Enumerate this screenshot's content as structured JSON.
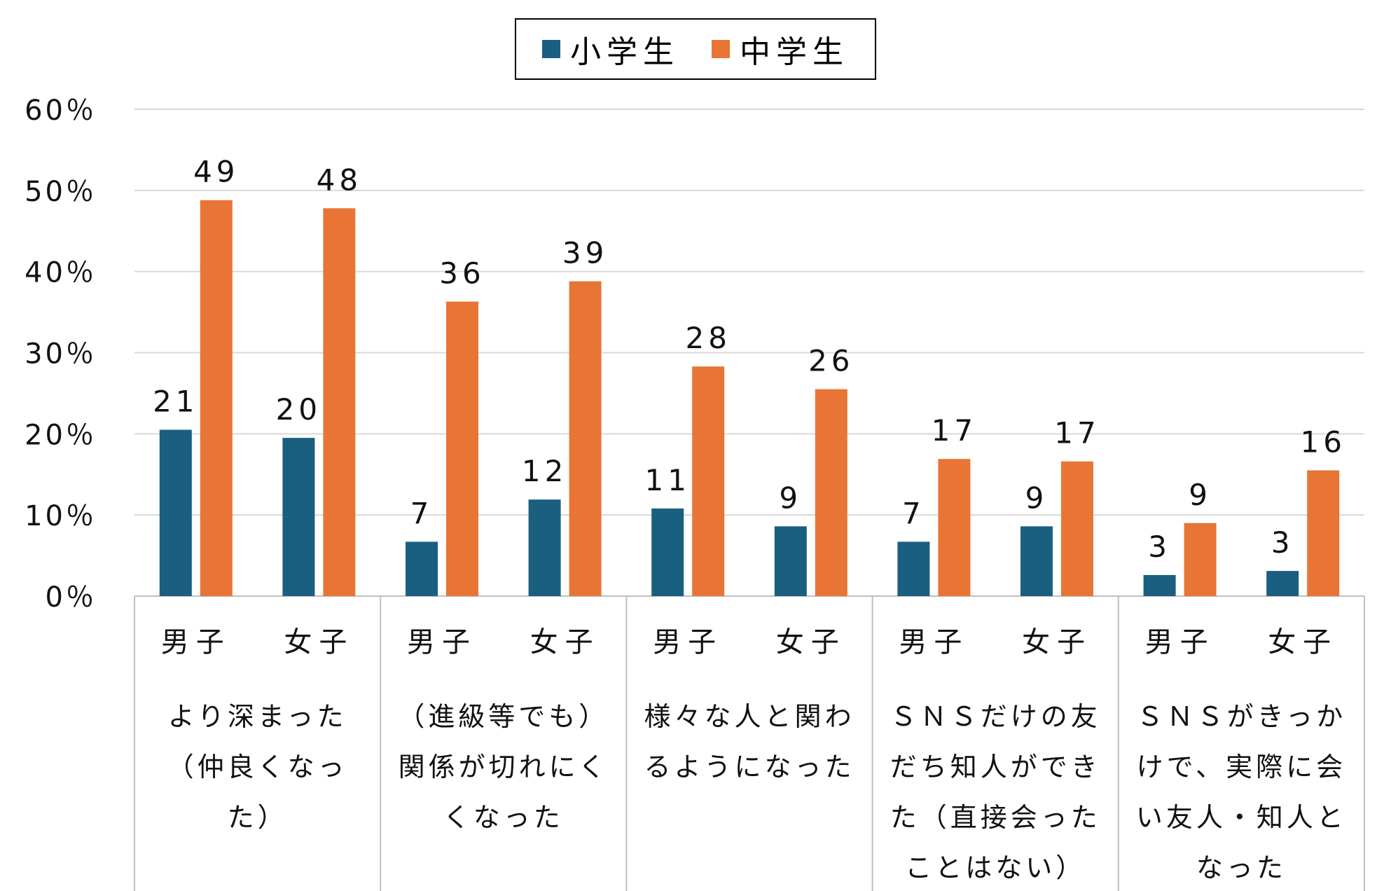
{
  "legend": {
    "elementary_label": "小学生",
    "junior_high_label": "中学生"
  },
  "colors": {
    "elementary": "#1a5f80",
    "junior_high": "#e87535",
    "grid": "#d9d9d9"
  },
  "chart_data": {
    "type": "bar",
    "ylim": [
      0,
      60
    ],
    "yticks": [
      "0％",
      "10％",
      "20％",
      "30％",
      "40％",
      "50％",
      "60％"
    ],
    "grid": true,
    "legend_position": "top",
    "groups": [
      {
        "label_lines": [
          "より深まった",
          "（仲良くなっ",
          "た）"
        ],
        "subs": [
          "男子",
          "女子"
        ]
      },
      {
        "label_lines": [
          "（進級等でも）",
          "関係が切れにく",
          "くなった"
        ],
        "subs": [
          "男子",
          "女子"
        ]
      },
      {
        "label_lines": [
          "様々な人と関わ",
          "るようになった"
        ],
        "subs": [
          "男子",
          "女子"
        ]
      },
      {
        "label_lines": [
          "ＳＮＳだけの友",
          "だち知人ができ",
          "た（直接会った",
          "ことはない）"
        ],
        "subs": [
          "男子",
          "女子"
        ]
      },
      {
        "label_lines": [
          "ＳＮＳがきっか",
          "けで、実際に会",
          "い友人・知人と",
          "なった"
        ],
        "subs": [
          "男子",
          "女子"
        ]
      }
    ],
    "series": [
      {
        "name": "小学生",
        "values": [
          20.5,
          19.5,
          6.7,
          11.9,
          10.8,
          8.6,
          6.7,
          8.6,
          2.6,
          3.1
        ],
        "labels": [
          "21",
          "20",
          "7",
          "12",
          "11",
          "9",
          "7",
          "9",
          "3",
          "3"
        ]
      },
      {
        "name": "中学生",
        "values": [
          48.8,
          47.8,
          36.3,
          38.8,
          28.3,
          25.5,
          16.9,
          16.6,
          9.0,
          15.5
        ],
        "labels": [
          "49",
          "48",
          "36",
          "39",
          "28",
          "26",
          "17",
          "17",
          "9",
          "16"
        ]
      }
    ]
  }
}
